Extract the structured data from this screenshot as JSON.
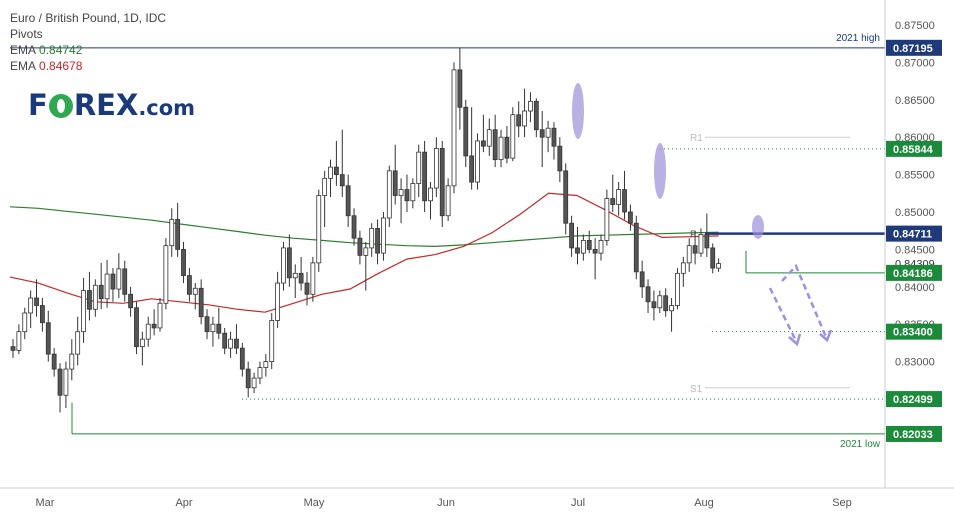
{
  "legend": {
    "title": "Euro / British Pound, 1D, IDC",
    "pivots": "Pivots",
    "ema1_label": "EMA",
    "ema1_value": "0.84742",
    "ema2_label": "EMA",
    "ema2_value": "0.84678"
  },
  "logo": {
    "text_fo": "F",
    "text_rest": "REX",
    "suffix": ".com"
  },
  "colors": {
    "up": "#ffffff",
    "down": "#555555",
    "wick": "#333333",
    "ema_green": "#2e7d32",
    "ema_red": "#c62828",
    "level_green": "#1b8a3a",
    "navy": "#1f3a7a",
    "highlight": "#9b8fd8",
    "arrow": "#a08fe0"
  },
  "chart_data": {
    "type": "candlestick",
    "title": "Euro / British Pound, 1D, IDC",
    "x_labels": [
      "Mar",
      "Apr",
      "May",
      "Jun",
      "Jul",
      "Aug",
      "Sep"
    ],
    "y_ticks": [
      "0.87500",
      "0.87000",
      "0.86500",
      "0.86000",
      "0.85500",
      "0.85000",
      "0.84500",
      "0.84000",
      "0.83500",
      "0.83000"
    ],
    "ylim": [
      0.8175,
      0.8786
    ],
    "price_tags": [
      {
        "value": 0.87195,
        "label": "0.87195",
        "style": "navy"
      },
      {
        "value": 0.85844,
        "label": "0.85844",
        "style": "green"
      },
      {
        "value": 0.84711,
        "label": "0.84711",
        "style": "navy"
      },
      {
        "value": 0.84309,
        "label": "0.84309",
        "style": "plain"
      },
      {
        "value": 0.84186,
        "label": "0.84186",
        "style": "green"
      },
      {
        "value": 0.834,
        "label": "0.83400",
        "style": "green"
      },
      {
        "value": 0.82499,
        "label": "0.82499",
        "style": "green"
      },
      {
        "value": 0.82033,
        "label": "0.82033",
        "style": "green"
      }
    ],
    "annotations": [
      {
        "text": "2021 high",
        "value": 0.87195
      },
      {
        "text": "2021 low",
        "value": 0.82033
      },
      {
        "text": "R1",
        "value": 0.86
      },
      {
        "text": "P",
        "value": 0.8471
      },
      {
        "text": "S1",
        "value": 0.8265
      }
    ],
    "ema_slow_green": [
      0.8507,
      0.8505,
      0.8501,
      0.8497,
      0.8493,
      0.8489,
      0.8484,
      0.8479,
      0.8474,
      0.8469,
      0.8465,
      0.8462,
      0.8459,
      0.8457,
      0.8455,
      0.8454,
      0.8456,
      0.8459,
      0.8462,
      0.8465,
      0.8468,
      0.8469,
      0.847,
      0.8471,
      0.8472,
      0.8473
    ],
    "ema_fast_red": [
      0.8413,
      0.8405,
      0.8392,
      0.838,
      0.8378,
      0.8384,
      0.838,
      0.8376,
      0.837,
      0.8366,
      0.8378,
      0.839,
      0.8397,
      0.8418,
      0.8437,
      0.8443,
      0.8454,
      0.8472,
      0.8497,
      0.8525,
      0.8522,
      0.8503,
      0.8482,
      0.8466,
      0.8467,
      0.8468
    ],
    "candles": [
      [
        0.832,
        0.833,
        0.8305,
        0.8315
      ],
      [
        0.8315,
        0.835,
        0.831,
        0.834
      ],
      [
        0.834,
        0.8372,
        0.833,
        0.8365
      ],
      [
        0.8365,
        0.8395,
        0.8345,
        0.8385
      ],
      [
        0.8385,
        0.841,
        0.836,
        0.8375
      ],
      [
        0.8375,
        0.8385,
        0.834,
        0.8352
      ],
      [
        0.8352,
        0.8368,
        0.83,
        0.831
      ],
      [
        0.831,
        0.8318,
        0.828,
        0.829
      ],
      [
        0.829,
        0.8298,
        0.8232,
        0.8255
      ],
      [
        0.8255,
        0.83,
        0.8238,
        0.829
      ],
      [
        0.829,
        0.833,
        0.8275,
        0.831
      ],
      [
        0.831,
        0.836,
        0.8295,
        0.834
      ],
      [
        0.834,
        0.8412,
        0.8325,
        0.8395
      ],
      [
        0.8395,
        0.842,
        0.8355,
        0.837
      ],
      [
        0.837,
        0.841,
        0.836,
        0.8402
      ],
      [
        0.8402,
        0.8432,
        0.837,
        0.8384
      ],
      [
        0.8384,
        0.8436,
        0.8372,
        0.8417
      ],
      [
        0.8417,
        0.8425,
        0.838,
        0.8397
      ],
      [
        0.8397,
        0.8445,
        0.8385,
        0.8424
      ],
      [
        0.8424,
        0.8435,
        0.838,
        0.839
      ],
      [
        0.839,
        0.84,
        0.836,
        0.8372
      ],
      [
        0.8372,
        0.838,
        0.831,
        0.832
      ],
      [
        0.832,
        0.834,
        0.8295,
        0.833
      ],
      [
        0.833,
        0.836,
        0.832,
        0.835
      ],
      [
        0.835,
        0.837,
        0.8335,
        0.8345
      ],
      [
        0.8345,
        0.8385,
        0.834,
        0.8378
      ],
      [
        0.8378,
        0.8465,
        0.837,
        0.8455
      ],
      [
        0.8455,
        0.8505,
        0.844,
        0.849
      ],
      [
        0.849,
        0.8512,
        0.844,
        0.845
      ],
      [
        0.845,
        0.846,
        0.8405,
        0.8415
      ],
      [
        0.8415,
        0.8425,
        0.838,
        0.839
      ],
      [
        0.839,
        0.8405,
        0.837,
        0.8398
      ],
      [
        0.8398,
        0.841,
        0.835,
        0.836
      ],
      [
        0.836,
        0.837,
        0.833,
        0.834
      ],
      [
        0.834,
        0.836,
        0.832,
        0.835
      ],
      [
        0.835,
        0.8372,
        0.833,
        0.8338
      ],
      [
        0.8338,
        0.8345,
        0.831,
        0.8318
      ],
      [
        0.8318,
        0.834,
        0.8305,
        0.833
      ],
      [
        0.833,
        0.835,
        0.831,
        0.8318
      ],
      [
        0.8318,
        0.8325,
        0.828,
        0.829
      ],
      [
        0.829,
        0.83,
        0.8252,
        0.8265
      ],
      [
        0.8265,
        0.8285,
        0.8258,
        0.8278
      ],
      [
        0.8278,
        0.83,
        0.827,
        0.8292
      ],
      [
        0.8292,
        0.831,
        0.828,
        0.83
      ],
      [
        0.83,
        0.8365,
        0.829,
        0.8355
      ],
      [
        0.8355,
        0.842,
        0.8345,
        0.8405
      ],
      [
        0.8405,
        0.846,
        0.8395,
        0.8452
      ],
      [
        0.8452,
        0.847,
        0.84,
        0.8412
      ],
      [
        0.8412,
        0.843,
        0.8385,
        0.8418
      ],
      [
        0.8418,
        0.844,
        0.8395,
        0.8405
      ],
      [
        0.8405,
        0.842,
        0.8375,
        0.839
      ],
      [
        0.839,
        0.844,
        0.838,
        0.8432
      ],
      [
        0.8432,
        0.853,
        0.842,
        0.8522
      ],
      [
        0.8522,
        0.8555,
        0.848,
        0.8545
      ],
      [
        0.8545,
        0.857,
        0.852,
        0.856
      ],
      [
        0.856,
        0.8595,
        0.8535,
        0.855
      ],
      [
        0.855,
        0.861,
        0.852,
        0.8535
      ],
      [
        0.8535,
        0.855,
        0.848,
        0.8495
      ],
      [
        0.8495,
        0.8505,
        0.8455,
        0.8465
      ],
      [
        0.8465,
        0.8475,
        0.843,
        0.8442
      ],
      [
        0.8442,
        0.846,
        0.8395,
        0.8452
      ],
      [
        0.8452,
        0.8485,
        0.844,
        0.8478
      ],
      [
        0.8478,
        0.849,
        0.843,
        0.8445
      ],
      [
        0.8445,
        0.85,
        0.8435,
        0.8492
      ],
      [
        0.8492,
        0.8562,
        0.848,
        0.8555
      ],
      [
        0.8555,
        0.859,
        0.851,
        0.8522
      ],
      [
        0.8522,
        0.8545,
        0.8485,
        0.853
      ],
      [
        0.853,
        0.855,
        0.85,
        0.8515
      ],
      [
        0.8515,
        0.8545,
        0.8505,
        0.8538
      ],
      [
        0.8538,
        0.859,
        0.852,
        0.858
      ],
      [
        0.858,
        0.8595,
        0.85,
        0.8515
      ],
      [
        0.8515,
        0.854,
        0.849,
        0.8532
      ],
      [
        0.8532,
        0.86,
        0.852,
        0.8585
      ],
      [
        0.8585,
        0.8595,
        0.848,
        0.8495
      ],
      [
        0.8495,
        0.8545,
        0.8488,
        0.8535
      ],
      [
        0.8535,
        0.87,
        0.8525,
        0.869
      ],
      [
        0.869,
        0.872,
        0.861,
        0.864
      ],
      [
        0.864,
        0.865,
        0.856,
        0.8575
      ],
      [
        0.8575,
        0.864,
        0.853,
        0.854
      ],
      [
        0.854,
        0.8605,
        0.853,
        0.8595
      ],
      [
        0.8595,
        0.863,
        0.858,
        0.8588
      ],
      [
        0.8588,
        0.8625,
        0.8575,
        0.861
      ],
      [
        0.861,
        0.863,
        0.856,
        0.857
      ],
      [
        0.857,
        0.861,
        0.856,
        0.86
      ],
      [
        0.86,
        0.8615,
        0.8565,
        0.8572
      ],
      [
        0.8572,
        0.864,
        0.8568,
        0.863
      ],
      [
        0.863,
        0.8648,
        0.86,
        0.8615
      ],
      [
        0.8615,
        0.8665,
        0.86,
        0.8635
      ],
      [
        0.8635,
        0.866,
        0.862,
        0.8648
      ],
      [
        0.8648,
        0.8652,
        0.86,
        0.861
      ],
      [
        0.861,
        0.8635,
        0.856,
        0.86
      ],
      [
        0.86,
        0.8622,
        0.858,
        0.8612
      ],
      [
        0.8612,
        0.862,
        0.857,
        0.8588
      ],
      [
        0.8588,
        0.86,
        0.854,
        0.8555
      ],
      [
        0.8555,
        0.8565,
        0.847,
        0.8485
      ],
      [
        0.8485,
        0.8495,
        0.844,
        0.8452
      ],
      [
        0.8452,
        0.848,
        0.843,
        0.8445
      ],
      [
        0.8445,
        0.847,
        0.8435,
        0.8462
      ],
      [
        0.8462,
        0.8475,
        0.8445,
        0.845
      ],
      [
        0.845,
        0.8465,
        0.841,
        0.8445
      ],
      [
        0.8445,
        0.847,
        0.8435,
        0.8462
      ],
      [
        0.8462,
        0.853,
        0.8455,
        0.8518
      ],
      [
        0.8518,
        0.855,
        0.85,
        0.851
      ],
      [
        0.851,
        0.854,
        0.8495,
        0.853
      ],
      [
        0.853,
        0.8555,
        0.849,
        0.85
      ],
      [
        0.85,
        0.851,
        0.8475,
        0.8485
      ],
      [
        0.8485,
        0.8495,
        0.841,
        0.842
      ],
      [
        0.842,
        0.8435,
        0.8385,
        0.84
      ],
      [
        0.84,
        0.841,
        0.8365,
        0.838
      ],
      [
        0.838,
        0.8395,
        0.8355,
        0.8372
      ],
      [
        0.8372,
        0.8395,
        0.8365,
        0.8388
      ],
      [
        0.8388,
        0.8398,
        0.836,
        0.8368
      ],
      [
        0.8368,
        0.8385,
        0.834,
        0.8375
      ],
      [
        0.8375,
        0.8425,
        0.837,
        0.8418
      ],
      [
        0.8418,
        0.844,
        0.84,
        0.8432
      ],
      [
        0.8432,
        0.8465,
        0.842,
        0.8455
      ],
      [
        0.8455,
        0.8475,
        0.843,
        0.8445
      ],
      [
        0.8445,
        0.8478,
        0.844,
        0.847
      ],
      [
        0.847,
        0.8498,
        0.844,
        0.8452
      ],
      [
        0.8452,
        0.8458,
        0.8418,
        0.8425
      ],
      [
        0.8425,
        0.8438,
        0.842,
        0.8431
      ]
    ]
  }
}
